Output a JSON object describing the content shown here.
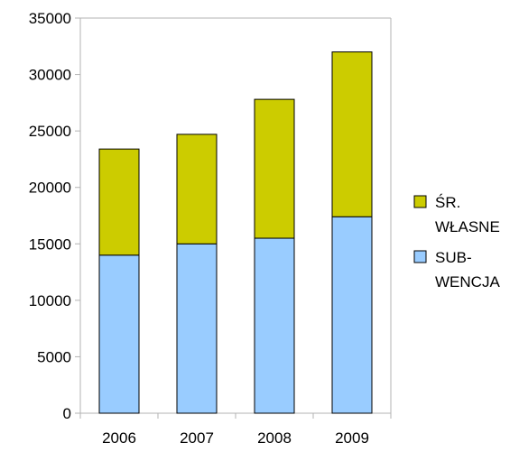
{
  "chart_data": {
    "type": "bar",
    "stacked": true,
    "categories": [
      "2006",
      "2007",
      "2008",
      "2009"
    ],
    "series": [
      {
        "name": "SUB-\nWENCJA",
        "color": "#99ccff",
        "values": [
          14000,
          15000,
          15500,
          17400
        ]
      },
      {
        "name": "ŚR.\nWŁASNE",
        "color": "#cccc00",
        "values": [
          9400,
          9700,
          12300,
          14600
        ]
      }
    ],
    "ylim": [
      0,
      35000
    ],
    "yticks": [
      0,
      5000,
      10000,
      15000,
      20000,
      25000,
      30000,
      35000
    ],
    "grid": false,
    "legend_position": "right"
  }
}
